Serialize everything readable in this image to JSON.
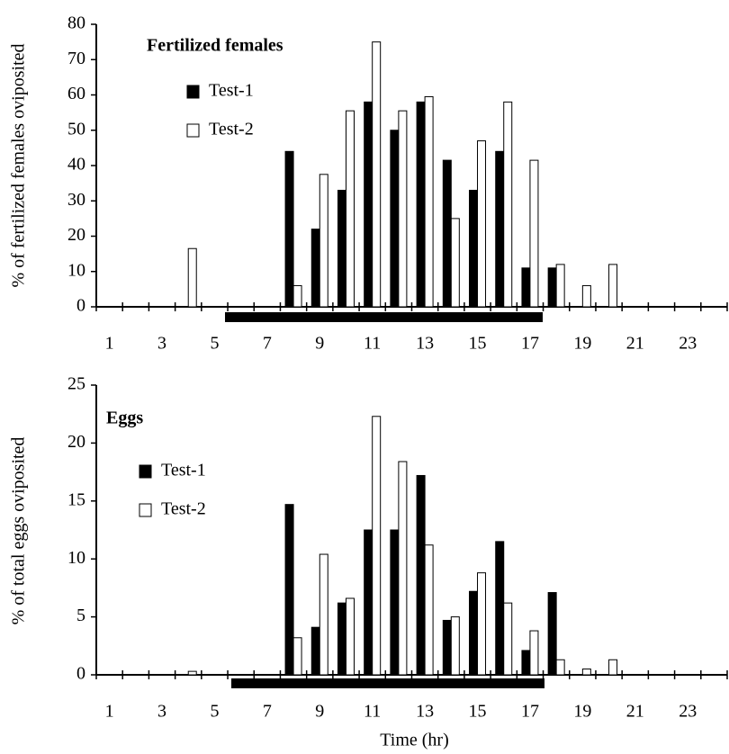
{
  "chart_data": [
    {
      "type": "bar",
      "title": "Fertilized females",
      "y_label": "% of fertilized females oviposited",
      "categories": [
        1,
        null,
        3,
        null,
        5,
        null,
        7,
        null,
        9,
        null,
        11,
        null,
        13,
        null,
        15,
        null,
        17,
        null,
        19,
        null,
        21,
        null,
        23,
        null
      ],
      "series": [
        {
          "name": "Test-1",
          "color": "#000000",
          "values": [
            0,
            0,
            0,
            0,
            0,
            0,
            0,
            44,
            22,
            33,
            58,
            50,
            58,
            41.5,
            33,
            44,
            11,
            11,
            0,
            0,
            0,
            0,
            0,
            0
          ]
        },
        {
          "name": "Test-2",
          "color": "#ffffff",
          "values": [
            0,
            0,
            0,
            16.5,
            0,
            0,
            0,
            6,
            37.5,
            55.5,
            75,
            55.5,
            59.5,
            25,
            47,
            58,
            41.5,
            12,
            6,
            12,
            0,
            0,
            0,
            0
          ]
        }
      ],
      "ylim": [
        0,
        80
      ],
      "yticks": [
        0,
        10,
        20,
        30,
        40,
        50,
        60,
        70,
        80
      ]
    },
    {
      "type": "bar",
      "title": "Eggs",
      "y_label": "% of total eggs oviposited",
      "x_label": "Time (hr)",
      "categories": [
        1,
        null,
        3,
        null,
        5,
        null,
        7,
        null,
        9,
        null,
        11,
        null,
        13,
        null,
        15,
        null,
        17,
        null,
        19,
        null,
        21,
        null,
        23,
        null
      ],
      "series": [
        {
          "name": "Test-1",
          "color": "#000000",
          "values": [
            0,
            0,
            0,
            0,
            0,
            0,
            0,
            14.7,
            4.1,
            6.2,
            12.5,
            12.5,
            17.2,
            4.7,
            7.2,
            11.5,
            2.1,
            7.1,
            0,
            0,
            0,
            0,
            0,
            0
          ]
        },
        {
          "name": "Test-2",
          "color": "#ffffff",
          "values": [
            0,
            0,
            0,
            0.3,
            0,
            0,
            0,
            3.2,
            10.4,
            6.6,
            22.3,
            18.4,
            11.2,
            5.0,
            8.8,
            6.2,
            3.8,
            1.3,
            0.5,
            1.3,
            0,
            0,
            0,
            0
          ]
        }
      ],
      "ylim": [
        0,
        25
      ],
      "yticks": [
        0,
        5,
        10,
        15,
        20,
        25
      ]
    }
  ]
}
